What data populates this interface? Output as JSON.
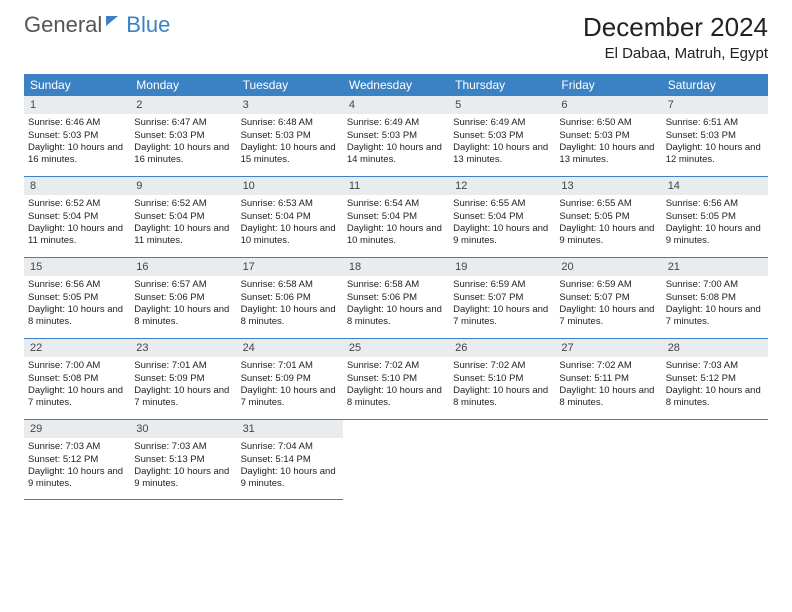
{
  "logo": {
    "text_general": "General",
    "text_blue": "Blue"
  },
  "header": {
    "month_title": "December 2024",
    "location": "El Dabaa, Matruh, Egypt"
  },
  "colors": {
    "accent": "#3b82c4",
    "day_header_bg": "#e8ecef",
    "text": "#222222",
    "bg": "#ffffff"
  },
  "weekdays": [
    "Sunday",
    "Monday",
    "Tuesday",
    "Wednesday",
    "Thursday",
    "Friday",
    "Saturday"
  ],
  "weeks": [
    [
      {
        "n": "1",
        "sr": "6:46 AM",
        "ss": "5:03 PM",
        "dl": "10 hours and 16 minutes."
      },
      {
        "n": "2",
        "sr": "6:47 AM",
        "ss": "5:03 PM",
        "dl": "10 hours and 16 minutes."
      },
      {
        "n": "3",
        "sr": "6:48 AM",
        "ss": "5:03 PM",
        "dl": "10 hours and 15 minutes."
      },
      {
        "n": "4",
        "sr": "6:49 AM",
        "ss": "5:03 PM",
        "dl": "10 hours and 14 minutes."
      },
      {
        "n": "5",
        "sr": "6:49 AM",
        "ss": "5:03 PM",
        "dl": "10 hours and 13 minutes."
      },
      {
        "n": "6",
        "sr": "6:50 AM",
        "ss": "5:03 PM",
        "dl": "10 hours and 13 minutes."
      },
      {
        "n": "7",
        "sr": "6:51 AM",
        "ss": "5:03 PM",
        "dl": "10 hours and 12 minutes."
      }
    ],
    [
      {
        "n": "8",
        "sr": "6:52 AM",
        "ss": "5:04 PM",
        "dl": "10 hours and 11 minutes."
      },
      {
        "n": "9",
        "sr": "6:52 AM",
        "ss": "5:04 PM",
        "dl": "10 hours and 11 minutes."
      },
      {
        "n": "10",
        "sr": "6:53 AM",
        "ss": "5:04 PM",
        "dl": "10 hours and 10 minutes."
      },
      {
        "n": "11",
        "sr": "6:54 AM",
        "ss": "5:04 PM",
        "dl": "10 hours and 10 minutes."
      },
      {
        "n": "12",
        "sr": "6:55 AM",
        "ss": "5:04 PM",
        "dl": "10 hours and 9 minutes."
      },
      {
        "n": "13",
        "sr": "6:55 AM",
        "ss": "5:05 PM",
        "dl": "10 hours and 9 minutes."
      },
      {
        "n": "14",
        "sr": "6:56 AM",
        "ss": "5:05 PM",
        "dl": "10 hours and 9 minutes."
      }
    ],
    [
      {
        "n": "15",
        "sr": "6:56 AM",
        "ss": "5:05 PM",
        "dl": "10 hours and 8 minutes."
      },
      {
        "n": "16",
        "sr": "6:57 AM",
        "ss": "5:06 PM",
        "dl": "10 hours and 8 minutes."
      },
      {
        "n": "17",
        "sr": "6:58 AM",
        "ss": "5:06 PM",
        "dl": "10 hours and 8 minutes."
      },
      {
        "n": "18",
        "sr": "6:58 AM",
        "ss": "5:06 PM",
        "dl": "10 hours and 8 minutes."
      },
      {
        "n": "19",
        "sr": "6:59 AM",
        "ss": "5:07 PM",
        "dl": "10 hours and 7 minutes."
      },
      {
        "n": "20",
        "sr": "6:59 AM",
        "ss": "5:07 PM",
        "dl": "10 hours and 7 minutes."
      },
      {
        "n": "21",
        "sr": "7:00 AM",
        "ss": "5:08 PM",
        "dl": "10 hours and 7 minutes."
      }
    ],
    [
      {
        "n": "22",
        "sr": "7:00 AM",
        "ss": "5:08 PM",
        "dl": "10 hours and 7 minutes."
      },
      {
        "n": "23",
        "sr": "7:01 AM",
        "ss": "5:09 PM",
        "dl": "10 hours and 7 minutes."
      },
      {
        "n": "24",
        "sr": "7:01 AM",
        "ss": "5:09 PM",
        "dl": "10 hours and 7 minutes."
      },
      {
        "n": "25",
        "sr": "7:02 AM",
        "ss": "5:10 PM",
        "dl": "10 hours and 8 minutes."
      },
      {
        "n": "26",
        "sr": "7:02 AM",
        "ss": "5:10 PM",
        "dl": "10 hours and 8 minutes."
      },
      {
        "n": "27",
        "sr": "7:02 AM",
        "ss": "5:11 PM",
        "dl": "10 hours and 8 minutes."
      },
      {
        "n": "28",
        "sr": "7:03 AM",
        "ss": "5:12 PM",
        "dl": "10 hours and 8 minutes."
      }
    ],
    [
      {
        "n": "29",
        "sr": "7:03 AM",
        "ss": "5:12 PM",
        "dl": "10 hours and 9 minutes."
      },
      {
        "n": "30",
        "sr": "7:03 AM",
        "ss": "5:13 PM",
        "dl": "10 hours and 9 minutes."
      },
      {
        "n": "31",
        "sr": "7:04 AM",
        "ss": "5:14 PM",
        "dl": "10 hours and 9 minutes."
      },
      null,
      null,
      null,
      null
    ]
  ],
  "labels": {
    "sunrise": "Sunrise:",
    "sunset": "Sunset:",
    "daylight": "Daylight:"
  }
}
